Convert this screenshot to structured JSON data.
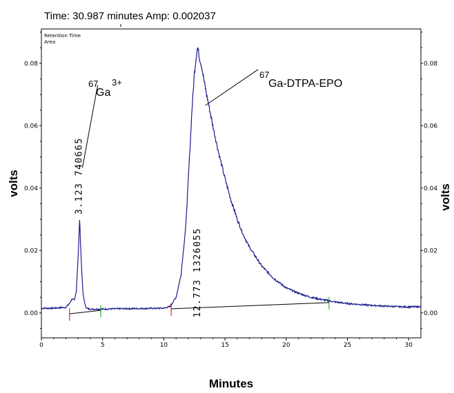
{
  "status_bar": {
    "time_label": "Time:",
    "time_value": "30.987",
    "time_unit": "minutes",
    "amp_label": "Amp:",
    "amp_value": "0.002037"
  },
  "chart_data": {
    "type": "line",
    "xlabel": "Minutes",
    "ylabel_left": "volts",
    "ylabel_right": "volts",
    "legend": [
      "Retention Time",
      "Area"
    ],
    "xlim": [
      0,
      31
    ],
    "ylim": [
      -0.008,
      0.091
    ],
    "x_ticks": [
      0,
      5,
      10,
      15,
      20,
      25,
      30
    ],
    "x_tick_labels": [
      "0",
      "5",
      "10",
      "15",
      "20",
      "25",
      "30"
    ],
    "y_ticks": [
      0.0,
      0.02,
      0.04,
      0.06,
      0.08
    ],
    "y_tick_labels": [
      "0.00",
      "0.02",
      "0.04",
      "0.06",
      "0.08"
    ],
    "series": [
      {
        "color": "#1a1a8c",
        "x": [
          0,
          1,
          2,
          2.3,
          2.5,
          2.7,
          2.85,
          3.0,
          3.123,
          3.25,
          3.4,
          3.6,
          3.8,
          4.2,
          5,
          6,
          8,
          10,
          10.5,
          11,
          11.4,
          11.8,
          12.1,
          12.3,
          12.5,
          12.7,
          12.773,
          12.9,
          13.1,
          13.3,
          13.6,
          14,
          14.5,
          15,
          15.5,
          16,
          16.5,
          17,
          18,
          19,
          20,
          21,
          22,
          23,
          24,
          25,
          26,
          27,
          28,
          29,
          30,
          31
        ],
        "y": [
          0.0015,
          0.0015,
          0.0018,
          0.003,
          0.0045,
          0.004,
          0.007,
          0.018,
          0.03,
          0.017,
          0.006,
          0.002,
          0.0013,
          0.0012,
          0.0012,
          0.0013,
          0.0014,
          0.0015,
          0.002,
          0.005,
          0.012,
          0.028,
          0.05,
          0.065,
          0.077,
          0.084,
          0.085,
          0.082,
          0.079,
          0.074,
          0.068,
          0.06,
          0.051,
          0.043,
          0.036,
          0.03,
          0.025,
          0.021,
          0.015,
          0.011,
          0.008,
          0.0063,
          0.005,
          0.0042,
          0.0035,
          0.003,
          0.0027,
          0.0024,
          0.0022,
          0.002,
          0.0019,
          0.002
        ]
      }
    ],
    "baseline_segments": [
      {
        "x": [
          2.3,
          4.85
        ],
        "y": [
          -0.0003,
          0.0008
        ]
      },
      {
        "x": [
          10.6,
          23.5
        ],
        "y": [
          0.0013,
          0.0033
        ]
      }
    ],
    "markers": [
      {
        "x": 2.3,
        "color": "#cc0000"
      },
      {
        "x": 4.85,
        "color": "#00aa00"
      },
      {
        "x": 10.6,
        "color": "#cc0000"
      },
      {
        "x": 23.5,
        "color": "#00aa00"
      }
    ],
    "peaks": [
      {
        "label": "3.123  740665",
        "x": 3.123,
        "label_x": 3.3,
        "label_y": 0.0315
      },
      {
        "label": "12.773  1326055",
        "x": 12.773,
        "label_x": 12.95,
        "label_y": -0.0015
      }
    ],
    "annotations": [
      {
        "sup": "67",
        "text": "Ga",
        "post_sup": "3+",
        "pointer_from": [
          4.6,
          0.073
        ],
        "pointer_to": [
          3.35,
          0.0465
        ]
      },
      {
        "sup": "67",
        "text": "Ga-DTPA-EPO",
        "pointer_from": [
          17.7,
          0.078
        ],
        "pointer_to": [
          13.4,
          0.0665
        ]
      }
    ]
  }
}
